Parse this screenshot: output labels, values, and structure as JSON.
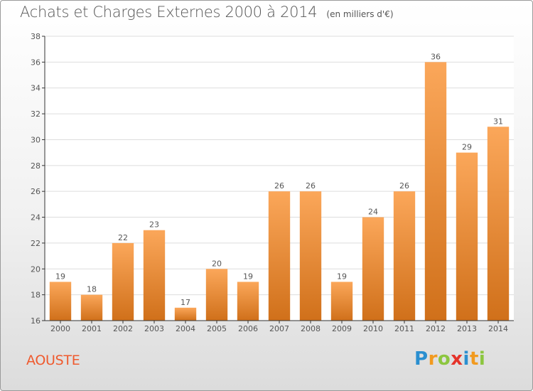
{
  "header": {
    "title": "Achats et Charges Externes 2000 à 2014",
    "subtitle": "(en milliers d'€)"
  },
  "footer": {
    "commune": "AOUSTE",
    "logo_letters": [
      {
        "char": "P",
        "color": "#2a8fd0"
      },
      {
        "char": "r",
        "color": "#f29a1f"
      },
      {
        "char": "o",
        "color": "#8cc63f"
      },
      {
        "char": "x",
        "color": "#e5332a"
      },
      {
        "char": "i",
        "color": "#2a8fd0"
      },
      {
        "char": "t",
        "color": "#f29a1f"
      },
      {
        "char": "i",
        "color": "#8cc63f"
      }
    ]
  },
  "colors": {
    "bar_top": "#fba75a",
    "bar_bottom": "#d0701a",
    "text": "#555555",
    "grid": "#dddddd",
    "axis": "#333333"
  },
  "chart_data": {
    "type": "bar",
    "title": "Achats et Charges Externes 2000 à 2014",
    "subtitle": "(en milliers d'€)",
    "categories": [
      "2000",
      "2001",
      "2002",
      "2003",
      "2004",
      "2005",
      "2006",
      "2007",
      "2008",
      "2009",
      "2010",
      "2011",
      "2012",
      "2013",
      "2014"
    ],
    "values": [
      19,
      18,
      22,
      23,
      17,
      20,
      19,
      26,
      26,
      19,
      24,
      26,
      36,
      29,
      31
    ],
    "data_labels": [
      "19",
      "18",
      "22",
      "23",
      "17",
      "20",
      "19",
      "26",
      "26",
      "19",
      "24",
      "26",
      "36",
      "29",
      "31"
    ],
    "ylim": [
      16,
      38
    ],
    "yticks": [
      16,
      18,
      20,
      22,
      24,
      26,
      28,
      30,
      32,
      34,
      36,
      38
    ],
    "xlabel": "",
    "ylabel": "",
    "grid": "horizontal"
  }
}
